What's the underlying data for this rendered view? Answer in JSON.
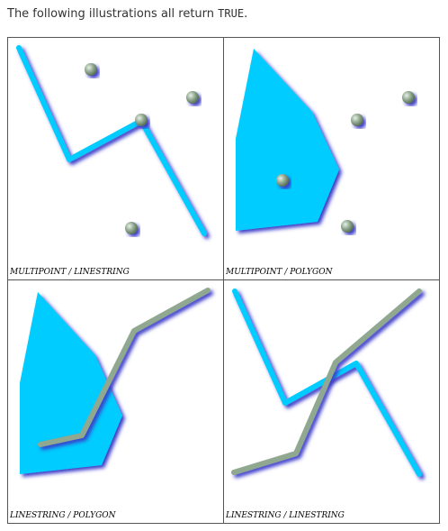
{
  "intro": {
    "before": "The following illustrations all return ",
    "keyword": "TRUE",
    "after": "."
  },
  "illustrations": [
    {
      "caption": "MULTIPOINT / LINESTRING"
    },
    {
      "caption": "MULTIPOINT / POLYGON"
    },
    {
      "caption": "LINESTRING / POLYGON"
    },
    {
      "caption": "LINESTRING / LINESTRING"
    }
  ],
  "colors": {
    "line": "#00ccff",
    "polygon": "#00ccff",
    "point": "#8fa88f",
    "green_line": "#8fa88f",
    "shadow": "#3a3ac8"
  }
}
